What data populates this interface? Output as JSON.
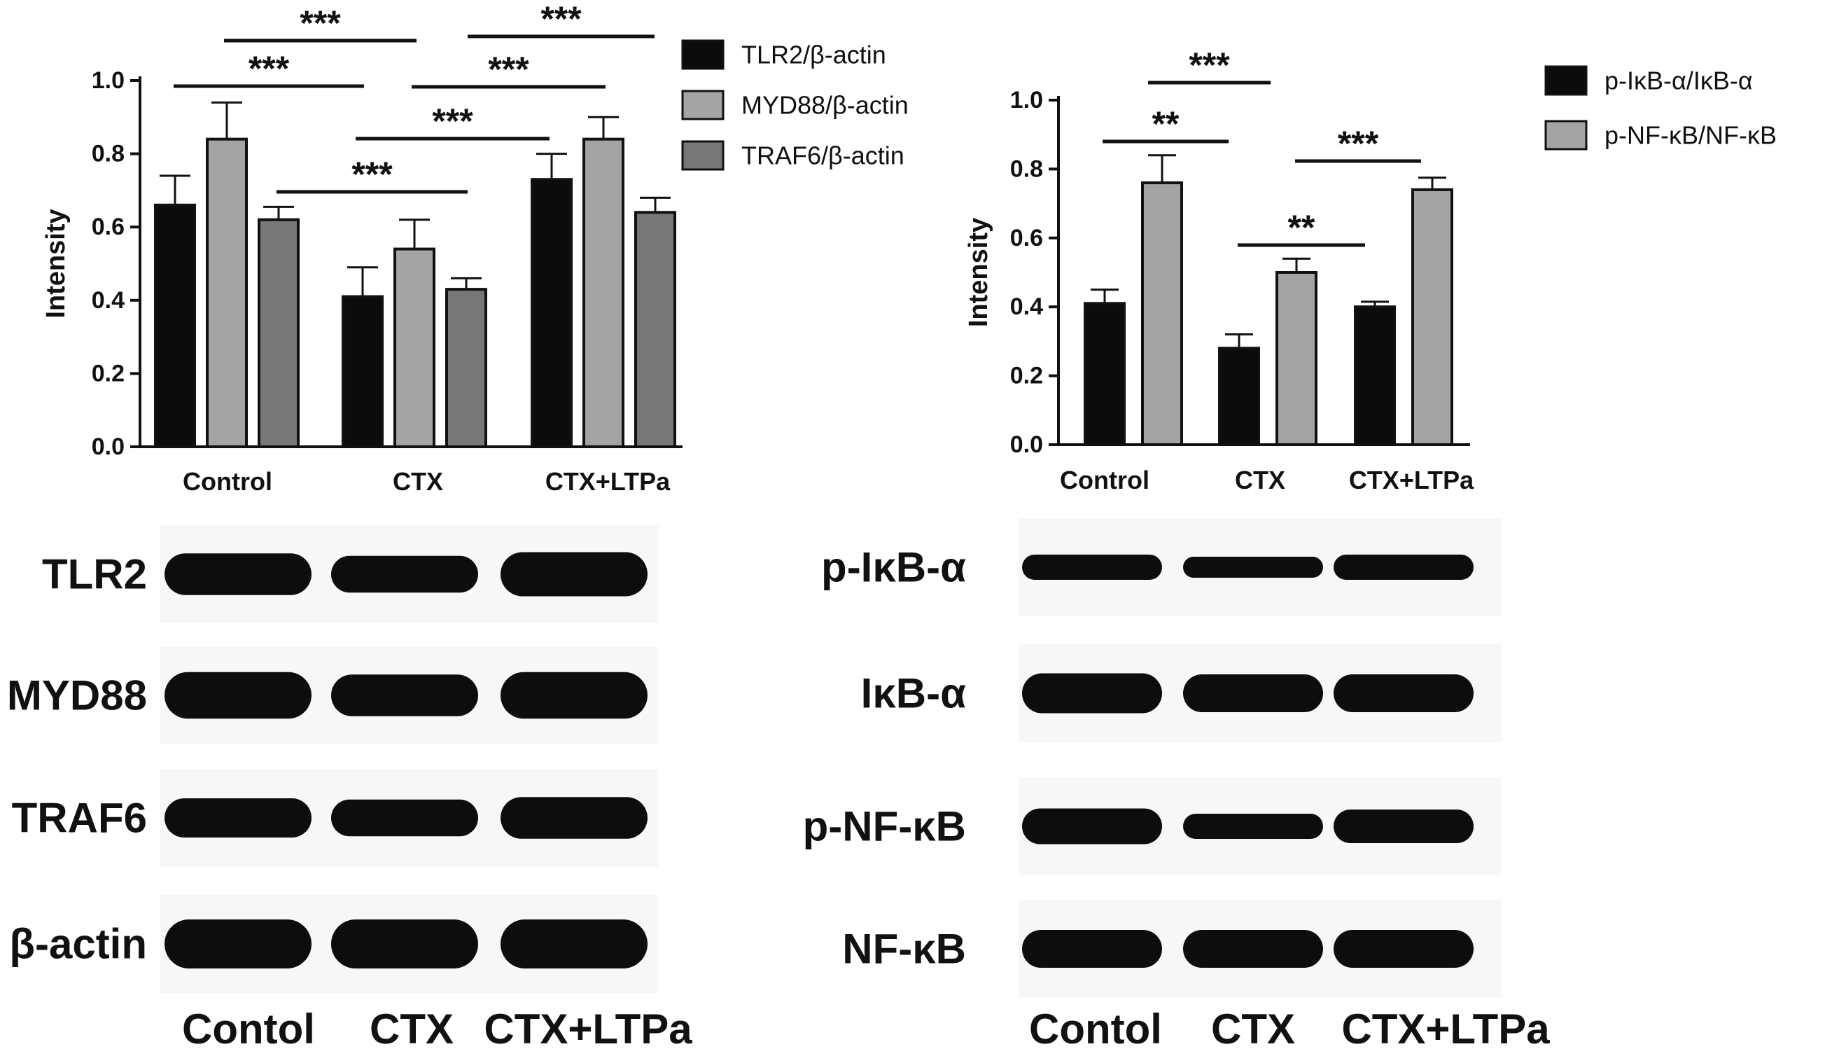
{
  "chart_data": [
    {
      "type": "bar",
      "title": "",
      "xlabel": "",
      "ylabel": "Intensity",
      "ylim": [
        0,
        1.0
      ],
      "yticks": [
        "0.0",
        "0.2",
        "0.4",
        "0.6",
        "0.8",
        "1.0"
      ],
      "grid": false,
      "legend_position": "right",
      "categories": [
        "Control",
        "CTX",
        "CTX+LTPa"
      ],
      "series": [
        {
          "name": "TLR2/β-actin",
          "color": "#0c0c0c",
          "values": [
            0.66,
            0.41,
            0.73
          ],
          "errors": [
            0.08,
            0.08,
            0.07
          ]
        },
        {
          "name": "MYD88/β-actin",
          "color": "#a4a4a4",
          "values": [
            0.84,
            0.54,
            0.84
          ],
          "errors": [
            0.1,
            0.08,
            0.06
          ]
        },
        {
          "name": "TRAF6/β-actin",
          "color": "#777777",
          "values": [
            0.62,
            0.43,
            0.64
          ],
          "errors": [
            0.035,
            0.03,
            0.04
          ]
        }
      ],
      "significance": [
        {
          "label": "***",
          "between": [
            "Control",
            "CTX"
          ],
          "bars": [
            1,
            4
          ]
        },
        {
          "label": "***",
          "between": [
            "Control",
            "CTX"
          ],
          "bars": [
            0,
            3
          ]
        },
        {
          "label": "***",
          "between": [
            "Control",
            "CTX"
          ],
          "bars": [
            2,
            5
          ]
        },
        {
          "label": "***",
          "between": [
            "CTX",
            "CTX+LTPa"
          ],
          "bars": [
            4,
            7
          ]
        },
        {
          "label": "***",
          "between": [
            "CTX",
            "CTX+LTPa"
          ],
          "bars": [
            3,
            6
          ]
        },
        {
          "label": "***",
          "between": [
            "CTX",
            "CTX+LTPa"
          ],
          "bars": [
            5,
            8
          ]
        }
      ]
    },
    {
      "type": "bar",
      "title": "",
      "xlabel": "",
      "ylabel": "Intensity",
      "ylim": [
        0,
        1.0
      ],
      "yticks": [
        "0.0",
        "0.2",
        "0.4",
        "0.6",
        "0.8",
        "1.0"
      ],
      "grid": false,
      "legend_position": "top-right",
      "categories": [
        "Control",
        "CTX",
        "CTX+LTPa"
      ],
      "series": [
        {
          "name": "p-IκB-α/IκB-α",
          "color": "#0c0c0c",
          "values": [
            0.41,
            0.28,
            0.4
          ],
          "errors": [
            0.04,
            0.04,
            0.015
          ]
        },
        {
          "name": "p-NF-κB/NF-κB",
          "color": "#a4a4a4",
          "values": [
            0.76,
            0.5,
            0.74
          ],
          "errors": [
            0.08,
            0.04,
            0.035
          ]
        }
      ],
      "significance": [
        {
          "label": "***",
          "between": [
            "Control",
            "CTX"
          ],
          "bars": [
            1,
            2
          ]
        },
        {
          "label": "**",
          "between": [
            "Control",
            "CTX"
          ],
          "bars": [
            0,
            2
          ]
        },
        {
          "label": "**",
          "between": [
            "CTX",
            "CTX+LTPa"
          ],
          "bars": [
            2,
            4
          ]
        },
        {
          "label": "***",
          "between": [
            "CTX",
            "CTX+LTPa"
          ],
          "bars": [
            4,
            5
          ]
        }
      ]
    }
  ],
  "blots": {
    "left": {
      "rows": [
        {
          "label": "TLR2",
          "intensities": [
            0.85,
            0.75,
            0.9
          ]
        },
        {
          "label": "MYD88",
          "intensities": [
            0.95,
            0.85,
            0.95
          ]
        },
        {
          "label": "TRAF6",
          "intensities": [
            0.8,
            0.75,
            0.85
          ]
        },
        {
          "label": "β-actin",
          "intensities": [
            1.0,
            1.0,
            1.0
          ]
        }
      ],
      "lanes": [
        "Contol",
        "CTX",
        "CTX+LTPa"
      ]
    },
    "right": {
      "rows": [
        {
          "label": "p-IκB-α",
          "intensities": [
            0.6,
            0.5,
            0.6
          ]
        },
        {
          "label": "IκB-α",
          "intensities": [
            0.95,
            0.9,
            0.9
          ]
        },
        {
          "label": "p-NF-κB",
          "intensities": [
            0.85,
            0.6,
            0.8
          ]
        },
        {
          "label": "NF-κB",
          "intensities": [
            0.9,
            0.9,
            0.9
          ]
        }
      ],
      "lanes": [
        "Contol",
        "CTX",
        "CTX+LTPa"
      ]
    }
  }
}
